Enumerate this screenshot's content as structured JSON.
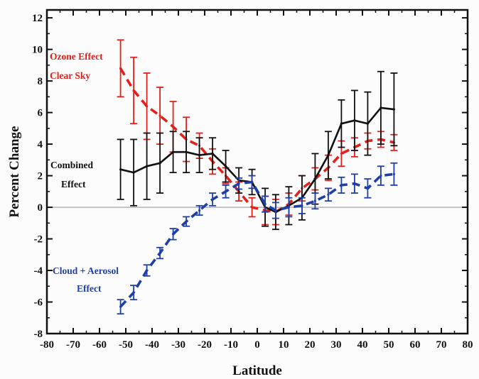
{
  "chart_data": {
    "type": "line",
    "title": "",
    "xlabel": "Latitude",
    "ylabel": "Percent Change",
    "xlim": [
      -80,
      80
    ],
    "ylim": [
      -8,
      12.5
    ],
    "xticks": [
      -80,
      -70,
      -60,
      -50,
      -40,
      -30,
      -20,
      -10,
      0,
      10,
      20,
      30,
      40,
      50,
      60,
      70,
      80
    ],
    "yticks": [
      -8,
      -6,
      -4,
      -2,
      0,
      2,
      4,
      6,
      8,
      10,
      12
    ],
    "zero_line": true,
    "grid": false,
    "colors": {
      "ozone": "#e3201b",
      "combined": "#111111",
      "cloud": "#1f3fa6",
      "zero_line": "#9a9a9a"
    },
    "series": [
      {
        "name": "Ozone Effect Clear Sky",
        "style": "dashed",
        "color": "#e3201b",
        "x": [
          -52,
          -47,
          -42,
          -37,
          -32,
          -27,
          -22,
          -17,
          -12,
          -7,
          -2,
          3,
          7,
          12,
          17,
          22,
          27,
          32,
          37,
          42,
          47,
          52
        ],
        "y": [
          8.8,
          7.4,
          6.4,
          5.8,
          5.1,
          4.3,
          3.9,
          2.9,
          2.0,
          1.0,
          0.0,
          -0.2,
          -0.3,
          0.2,
          1.2,
          1.8,
          2.5,
          3.4,
          3.8,
          4.2,
          4.3,
          4.1
        ],
        "err": [
          1.8,
          2.1,
          2.1,
          1.8,
          1.6,
          1.4,
          0.8,
          0.8,
          0.5,
          0.6,
          0.6,
          0.9,
          0.8,
          0.7,
          0.8,
          0.7,
          0.8,
          0.8,
          0.6,
          0.5,
          0.5,
          0.5
        ]
      },
      {
        "name": "Combined Effect",
        "style": "solid",
        "color": "#111111",
        "x": [
          -52,
          -47,
          -42,
          -37,
          -32,
          -27,
          -22,
          -17,
          -12,
          -7,
          -2,
          3,
          7,
          12,
          17,
          22,
          27,
          32,
          37,
          42,
          47,
          52
        ],
        "y": [
          2.4,
          2.2,
          2.6,
          2.8,
          3.5,
          3.5,
          3.3,
          3.4,
          2.6,
          1.7,
          1.6,
          0.0,
          -0.3,
          0.1,
          0.6,
          1.8,
          3.3,
          5.3,
          5.5,
          5.3,
          6.3,
          6.2
        ],
        "err": [
          1.9,
          2.1,
          2.1,
          1.9,
          1.3,
          1.3,
          1.1,
          1.0,
          1.0,
          0.8,
          0.8,
          1.2,
          1.1,
          1.2,
          1.4,
          1.6,
          1.5,
          1.5,
          1.9,
          2.0,
          2.3,
          2.3
        ]
      },
      {
        "name": "Cloud + Aerosol Effect",
        "style": "dashed",
        "color": "#1f3fa6",
        "x": [
          -52,
          -47,
          -42,
          -37,
          -32,
          -27,
          -22,
          -17,
          -12,
          -7,
          -2,
          3,
          7,
          12,
          17,
          22,
          27,
          32,
          37,
          42,
          47,
          52
        ],
        "y": [
          -6.3,
          -5.4,
          -4.0,
          -2.9,
          -1.7,
          -0.9,
          -0.2,
          0.5,
          1.0,
          1.5,
          1.6,
          0.2,
          -0.2,
          0.0,
          0.1,
          0.4,
          0.8,
          1.4,
          1.5,
          1.2,
          2.0,
          2.1
        ],
        "err": [
          0.45,
          0.45,
          0.35,
          0.35,
          0.35,
          0.3,
          0.3,
          0.4,
          0.4,
          0.35,
          0.4,
          0.5,
          0.5,
          0.6,
          0.5,
          0.5,
          0.4,
          0.5,
          0.6,
          0.6,
          0.6,
          0.7
        ]
      }
    ],
    "annotations": [
      {
        "text": "Ozone Effect",
        "color": "#e3201b",
        "series": "ozone",
        "line": 1
      },
      {
        "text": "Clear Sky",
        "color": "#e3201b",
        "series": "ozone",
        "line": 2
      },
      {
        "text": "Combined",
        "color": "#111111",
        "series": "combined",
        "line": 1
      },
      {
        "text": "Effect",
        "color": "#111111",
        "series": "combined",
        "line": 2
      },
      {
        "text": "Cloud + Aerosol",
        "color": "#1f3fa6",
        "series": "cloud",
        "line": 1
      },
      {
        "text": "Effect",
        "color": "#1f3fa6",
        "series": "cloud",
        "line": 2
      }
    ]
  }
}
